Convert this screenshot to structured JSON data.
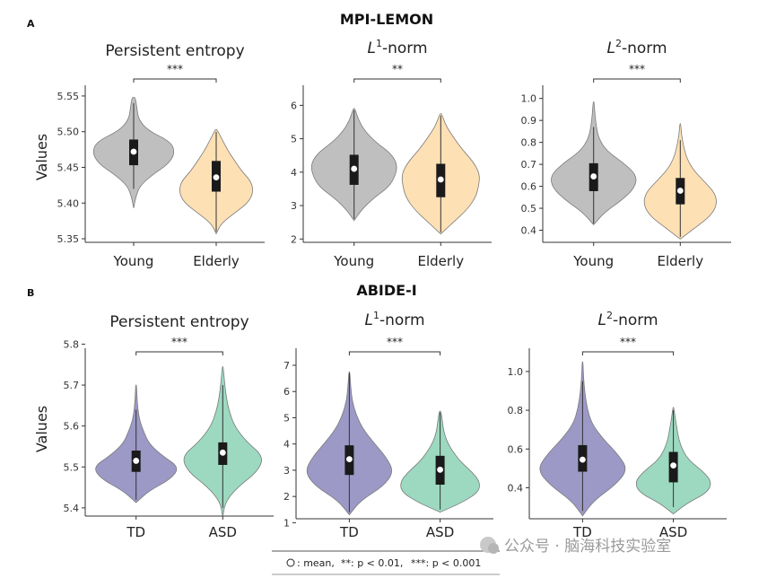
{
  "panel_labels": [
    "A",
    "B"
  ],
  "row_titles": [
    "MPI-LEMON",
    "ABIDE-I"
  ],
  "ylabel": "Values",
  "legend": {
    "mean_label": ": mean,",
    "p01_label": "**: p < 0.01,",
    "p001_label": "***: p < 0.001"
  },
  "watermark": "公众号 · 脑海科技实验室",
  "colors": {
    "young": "#bfbfbf",
    "elderly": "#fde0b4",
    "td": "#9c99c6",
    "asd": "#9cd9c0",
    "box": "#1a1a1a",
    "mean": "#ffffff",
    "outline": "#7a7a7a"
  },
  "chart_data": [
    {
      "type": "violin",
      "row": 0,
      "title": "Persistent entropy",
      "title_sup": "",
      "categories": [
        "Young",
        "Elderly"
      ],
      "ylim": [
        5.345,
        5.565
      ],
      "yticks": [
        5.35,
        5.4,
        5.45,
        5.5,
        5.55
      ],
      "significance": "***",
      "groups": [
        {
          "name": "Young",
          "color": "young",
          "min": 5.393,
          "max": 5.548,
          "q1": 5.453,
          "q3": 5.489,
          "mean": 5.472,
          "wmin": 5.42,
          "wmax": 5.54,
          "widths": [
            0,
            0.05,
            0.15,
            0.45,
            0.85,
            1.0,
            0.9,
            0.35,
            0.12,
            0.08,
            0.04
          ]
        },
        {
          "name": "Elderly",
          "color": "elderly",
          "min": 5.357,
          "max": 5.503,
          "q1": 5.416,
          "q3": 5.459,
          "mean": 5.436,
          "wmin": 5.36,
          "wmax": 5.5,
          "widths": [
            0,
            0.12,
            0.45,
            0.78,
            0.9,
            0.85,
            0.62,
            0.45,
            0.28,
            0.15,
            0.02
          ]
        }
      ]
    },
    {
      "type": "violin",
      "row": 0,
      "title": "L",
      "title_sup": "1",
      "title_suffix": "-norm",
      "categories": [
        "Young",
        "Elderly"
      ],
      "ylim": [
        1.9,
        6.6
      ],
      "yticks": [
        2,
        3,
        4,
        5,
        6
      ],
      "significance": "**",
      "groups": [
        {
          "name": "Young",
          "color": "young",
          "min": 2.55,
          "max": 5.9,
          "q1": 3.62,
          "q3": 4.52,
          "mean": 4.1,
          "wmin": 2.6,
          "wmax": 5.85,
          "widths": [
            0,
            0.18,
            0.45,
            0.8,
            0.95,
            1.0,
            0.85,
            0.5,
            0.25,
            0.1,
            0.02
          ]
        },
        {
          "name": "Elderly",
          "color": "elderly",
          "min": 2.15,
          "max": 5.75,
          "q1": 3.25,
          "q3": 4.25,
          "mean": 3.78,
          "wmin": 2.2,
          "wmax": 5.7,
          "widths": [
            0,
            0.3,
            0.6,
            0.8,
            0.88,
            0.9,
            0.75,
            0.5,
            0.3,
            0.12,
            0.02
          ]
        }
      ]
    },
    {
      "type": "violin",
      "row": 0,
      "title": "L",
      "title_sup": "2",
      "title_suffix": "-norm",
      "categories": [
        "Young",
        "Elderly"
      ],
      "ylim": [
        0.345,
        1.06
      ],
      "yticks": [
        0.4,
        0.5,
        0.6,
        0.7,
        0.8,
        0.9,
        1.0
      ],
      "significance": "***",
      "groups": [
        {
          "name": "Young",
          "color": "young",
          "min": 0.425,
          "max": 0.985,
          "q1": 0.578,
          "q3": 0.705,
          "mean": 0.645,
          "wmin": 0.43,
          "wmax": 0.87,
          "widths": [
            0,
            0.25,
            0.65,
            0.95,
            1.0,
            0.7,
            0.3,
            0.12,
            0.06,
            0.03,
            0.01
          ]
        },
        {
          "name": "Elderly",
          "color": "elderly",
          "min": 0.36,
          "max": 0.885,
          "q1": 0.518,
          "q3": 0.638,
          "mean": 0.58,
          "wmin": 0.37,
          "wmax": 0.81,
          "widths": [
            0,
            0.35,
            0.7,
            0.85,
            0.8,
            0.55,
            0.3,
            0.15,
            0.08,
            0.03,
            0.01
          ]
        }
      ]
    },
    {
      "type": "violin",
      "row": 1,
      "title": "Persistent entropy",
      "title_sup": "",
      "categories": [
        "TD",
        "ASD"
      ],
      "ylim": [
        5.38,
        5.79
      ],
      "yticks": [
        5.4,
        5.5,
        5.6,
        5.7,
        5.8
      ],
      "significance": "***",
      "groups": [
        {
          "name": "TD",
          "color": "td",
          "min": 5.413,
          "max": 5.7,
          "q1": 5.488,
          "q3": 5.54,
          "mean": 5.515,
          "wmin": 5.42,
          "wmax": 5.64,
          "widths": [
            0,
            0.3,
            0.8,
            1.0,
            0.6,
            0.3,
            0.18,
            0.08,
            0.04,
            0.02,
            0.01
          ]
        },
        {
          "name": "ASD",
          "color": "asd",
          "min": 5.378,
          "max": 5.745,
          "q1": 5.505,
          "q3": 5.56,
          "mean": 5.535,
          "wmin": 5.4,
          "wmax": 5.7,
          "widths": [
            0,
            0.06,
            0.35,
            0.8,
            0.95,
            0.55,
            0.28,
            0.15,
            0.08,
            0.04,
            0.01
          ]
        }
      ]
    },
    {
      "type": "violin",
      "row": 1,
      "title": "L",
      "title_sup": "1",
      "title_suffix": "-norm",
      "categories": [
        "TD",
        "ASD"
      ],
      "ylim": [
        1.15,
        7.65
      ],
      "yticks": [
        1,
        2,
        3,
        4,
        5,
        6,
        7
      ],
      "significance": "***",
      "groups": [
        {
          "name": "TD",
          "color": "td",
          "min": 1.3,
          "max": 6.75,
          "q1": 2.82,
          "q3": 3.95,
          "mean": 3.42,
          "wmin": 1.4,
          "wmax": 6.7,
          "widths": [
            0,
            0.25,
            0.75,
            0.98,
            0.82,
            0.55,
            0.3,
            0.15,
            0.06,
            0.03,
            0.01
          ]
        },
        {
          "name": "ASD",
          "color": "asd",
          "min": 1.4,
          "max": 5.25,
          "q1": 2.45,
          "q3": 3.55,
          "mean": 3.02,
          "wmin": 1.5,
          "wmax": 5.2,
          "widths": [
            0,
            0.5,
            0.85,
            0.88,
            0.7,
            0.45,
            0.28,
            0.15,
            0.08,
            0.05,
            0.02
          ]
        }
      ]
    },
    {
      "type": "violin",
      "row": 1,
      "title": "L",
      "title_sup": "2",
      "title_suffix": "-norm",
      "categories": [
        "TD",
        "ASD"
      ],
      "ylim": [
        0.24,
        1.12
      ],
      "yticks": [
        0.4,
        0.6,
        0.8,
        1.0
      ],
      "significance": "***",
      "groups": [
        {
          "name": "TD",
          "color": "td",
          "min": 0.255,
          "max": 1.05,
          "q1": 0.483,
          "q3": 0.62,
          "mean": 0.545,
          "wmin": 0.28,
          "wmax": 0.95,
          "widths": [
            0,
            0.25,
            0.72,
            1.0,
            0.78,
            0.45,
            0.2,
            0.1,
            0.05,
            0.02,
            0.01
          ]
        },
        {
          "name": "ASD",
          "color": "asd",
          "min": 0.265,
          "max": 0.815,
          "q1": 0.428,
          "q3": 0.585,
          "mean": 0.515,
          "wmin": 0.3,
          "wmax": 0.8,
          "widths": [
            0,
            0.3,
            0.75,
            0.85,
            0.65,
            0.35,
            0.2,
            0.12,
            0.08,
            0.04,
            0.01
          ]
        }
      ]
    }
  ]
}
